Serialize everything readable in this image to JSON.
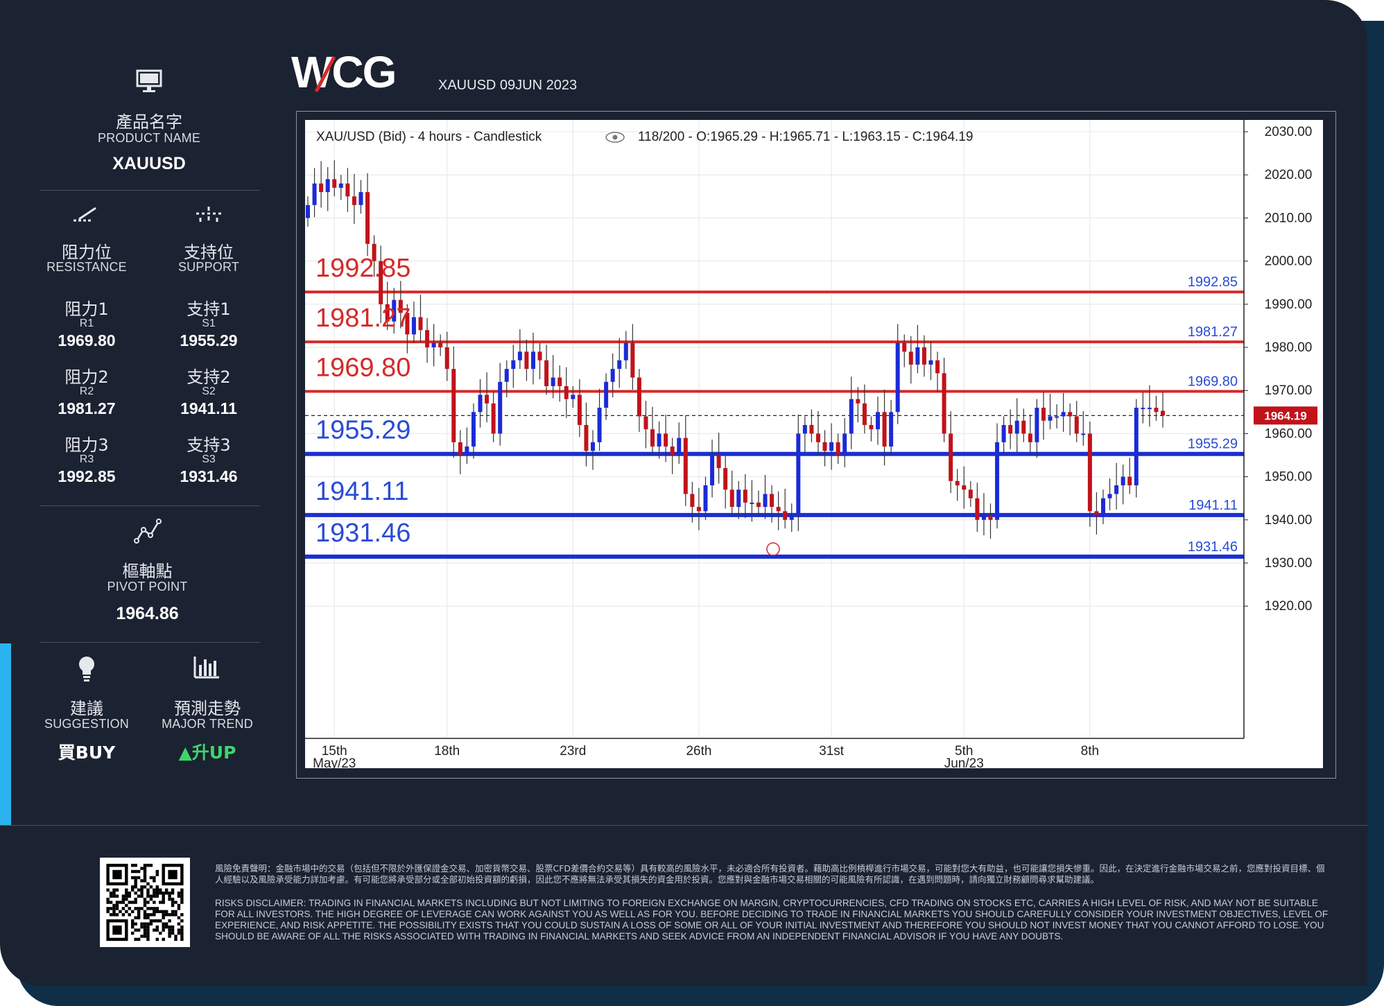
{
  "brand": {
    "logo_text": "WCG"
  },
  "header": {
    "date_label": "XAUUSD 09JUN 2023"
  },
  "sidebar": {
    "product": {
      "icon": "monitor-icon",
      "label_zh": "產品名字",
      "label_en": "PRODUCT NAME",
      "value": "XAUUSD"
    },
    "resistance": {
      "icon": "resistance-icon",
      "label_zh": "阻力位",
      "label_en": "RESISTANCE"
    },
    "support": {
      "icon": "support-icon",
      "label_zh": "支持位",
      "label_en": "SUPPORT"
    },
    "levels": [
      {
        "r_zh": "阻力1",
        "r_code": "R1",
        "r_value": "1969.80",
        "s_zh": "支持1",
        "s_code": "S1",
        "s_value": "1955.29"
      },
      {
        "r_zh": "阻力2",
        "r_code": "R2",
        "r_value": "1981.27",
        "s_zh": "支持2",
        "s_code": "S2",
        "s_value": "1941.11"
      },
      {
        "r_zh": "阻力3",
        "r_code": "R3",
        "r_value": "1992.85",
        "s_zh": "支持3",
        "s_code": "S3",
        "s_value": "1931.46"
      }
    ],
    "pivot": {
      "icon": "pivot-icon",
      "label_zh": "樞軸點",
      "label_en": "PIVOT POINT",
      "value": "1964.86"
    },
    "suggestion": {
      "icon": "lightbulb-icon",
      "label_zh": "建議",
      "label_en": "SUGGESTION",
      "value": "買BUY"
    },
    "trend": {
      "icon": "bar-chart-icon",
      "label_zh": "預測走勢",
      "label_en": "MAJOR TREND",
      "arrow": "▲",
      "value": "升UP"
    }
  },
  "colors": {
    "up_green": "#3dd66b",
    "resistance_red": "#d42a2a",
    "support_blue": "#1a2fd0",
    "bear_candle": "#c0131a",
    "bull_candle": "#1b2bd6",
    "accent_cyan": "#2ab3ee",
    "card_bg": "#1b2231"
  },
  "chart_data": {
    "type": "candlestick",
    "title": "XAU/USD (Bid) - 4 hours - Candlestick",
    "info": "118/200 - O:1965.29 - H:1965.71 - L:1963.15 - C:1964.19",
    "last_price": 1964.19,
    "last_price_label": "1964.19",
    "ylim": [
      1917,
      2032
    ],
    "y_ticks": [
      "2030.00",
      "2020.00",
      "2010.00",
      "2000.00",
      "1990.00",
      "1980.00",
      "1970.00",
      "1960.00",
      "1950.00",
      "1940.00",
      "1930.00",
      "1920.00"
    ],
    "x_ticks": [
      {
        "label": "15th",
        "sub": "May/23"
      },
      {
        "label": "18th",
        "sub": ""
      },
      {
        "label": "23rd",
        "sub": ""
      },
      {
        "label": "26th",
        "sub": ""
      },
      {
        "label": "31st",
        "sub": ""
      },
      {
        "label": "5th",
        "sub": "Jun/23"
      },
      {
        "label": "8th",
        "sub": ""
      }
    ],
    "levels": [
      {
        "kind": "resistance",
        "value": 1992.85,
        "label": "1992.85"
      },
      {
        "kind": "resistance",
        "value": 1981.27,
        "label": "1981.27"
      },
      {
        "kind": "resistance",
        "value": 1969.8,
        "label": "1969.80"
      },
      {
        "kind": "support",
        "value": 1955.29,
        "label": "1955.29"
      },
      {
        "kind": "support",
        "value": 1941.11,
        "label": "1941.11"
      },
      {
        "kind": "support",
        "value": 1931.46,
        "label": "1931.46"
      }
    ],
    "closes": [
      2013,
      2018,
      2016,
      2019,
      2017,
      2018,
      2015,
      2013,
      2016,
      2004,
      2000,
      1990,
      1986,
      1991,
      1988,
      1983,
      1987,
      1984,
      1980,
      1981,
      1980,
      1975,
      1958,
      1955,
      1957,
      1965,
      1969,
      1967,
      1960,
      1972,
      1975,
      1977,
      1979,
      1975,
      1979,
      1977,
      1971,
      1973,
      1971,
      1968,
      1969,
      1962,
      1956,
      1958,
      1966,
      1972,
      1975,
      1977,
      1981,
      1973,
      1964,
      1961,
      1957,
      1960,
      1957,
      1955,
      1959,
      1946,
      1943,
      1942,
      1948,
      1955,
      1952,
      1947,
      1943,
      1947,
      1944,
      1944,
      1943,
      1946,
      1943,
      1942,
      1940,
      1941,
      1960,
      1962,
      1960,
      1958,
      1956,
      1958,
      1955,
      1960,
      1968,
      1967,
      1962,
      1961,
      1965,
      1957,
      1965,
      1981,
      1979,
      1976,
      1980,
      1976,
      1977,
      1974,
      1960,
      1949,
      1948,
      1947,
      1945,
      1940,
      1941,
      1940,
      1958,
      1962,
      1960,
      1963,
      1960,
      1958,
      1966,
      1963,
      1964,
      1964,
      1965,
      1964,
      1960,
      1960,
      1942,
      1941,
      1945,
      1946,
      1948,
      1950,
      1948,
      1966,
      1966,
      1966,
      1965,
      1964.19
    ]
  },
  "footer": {
    "disclaimer_zh": "風險免責聲明：金融市場中的交易（包括但不限於外匯保證金交易、加密貨幣交易、股票CFD差價合約交易等）具有較高的風險水平，未必適合所有投資者。藉助高比例槓桿進行市場交易，可能對您大有助益，也可能讓您損失慘重。因此，在決定進行金融市場交易之前，您應對投資目標、個人經驗以及風險承受能力詳加考慮。有可能您將承受部分或全部初始投資額的虧損，因此您不應將無法承受其損失的資金用於投資。您應對與金融市場交易相關的可能風險有所認識，在遇到問題時，請向獨立財務顧問尋求幫助建議。",
    "disclaimer_en": "RISKS DISCLAIMER: TRADING IN FINANCIAL MARKETS INCLUDING BUT NOT LIMITING TO FOREIGN EXCHANGE ON MARGIN, CRYPTOCURRENCIES, CFD TRADING ON STOCKS ETC, CARRIES A HIGH LEVEL OF RISK, AND MAY NOT BE SUITABLE FOR ALL INVESTORS. THE HIGH DEGREE OF LEVERAGE CAN WORK AGAINST YOU AS WELL AS FOR YOU. BEFORE DECIDING TO TRADE IN FINANCIAL MARKETS YOU SHOULD CAREFULLY CONSIDER YOUR INVESTMENT OBJECTIVES, LEVEL OF EXPERIENCE, AND RISK APPETITE. THE POSSIBILITY EXISTS THAT YOU COULD SUSTAIN A LOSS OF SOME OR ALL OF YOUR INITIAL INVESTMENT AND THEREFORE YOU SHOULD NOT INVEST MONEY THAT YOU CANNOT AFFORD TO LOSE. YOU SHOULD BE AWARE OF ALL THE RISKS ASSOCIATED WITH TRADING IN FINANCIAL MARKETS AND SEEK ADVICE FROM AN INDEPENDENT FINANCIAL ADVISOR IF YOU HAVE ANY DOUBTS.",
    "qr_icon": "qr-code-icon"
  }
}
